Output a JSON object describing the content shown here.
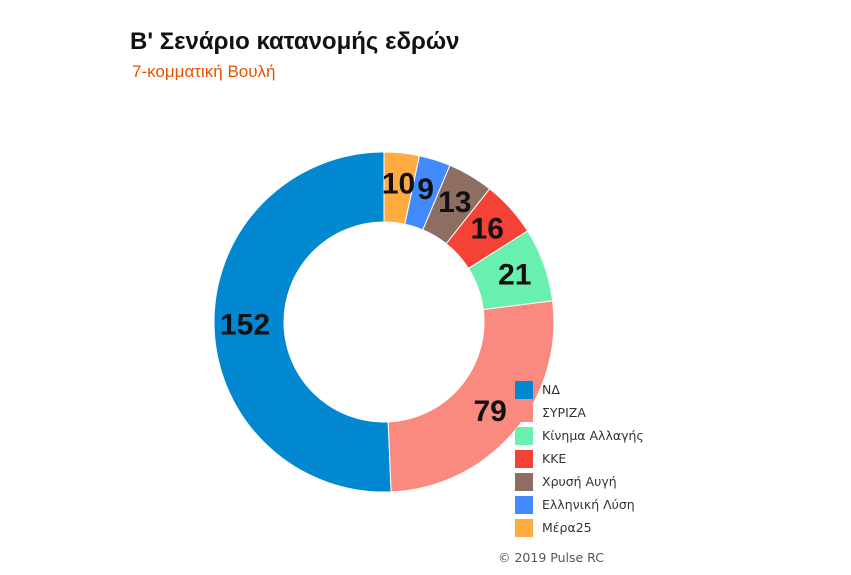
{
  "chart_data": {
    "type": "pie",
    "title": "Β' Σενάριο κατανομής εδρών",
    "subtitle": "7-κομματική Βουλή",
    "style": "donut",
    "categories": [
      "ΝΔ",
      "ΣΥΡΙΖΑ",
      "Κίνημα Αλλαγής",
      "ΚΚΕ",
      "Χρυσή Αυγή",
      "Ελληνική Λύση",
      "Μέρα25"
    ],
    "values": [
      152,
      79,
      21,
      16,
      13,
      9,
      10
    ],
    "colors": [
      "#0288d1",
      "#fa8a80",
      "#69f0ae",
      "#f44336",
      "#8d6e63",
      "#448aff",
      "#ffab40"
    ],
    "legend_position": "bottom-right",
    "subtitle_color": "#e65100"
  },
  "copyright": "© 2019 Pulse RC"
}
